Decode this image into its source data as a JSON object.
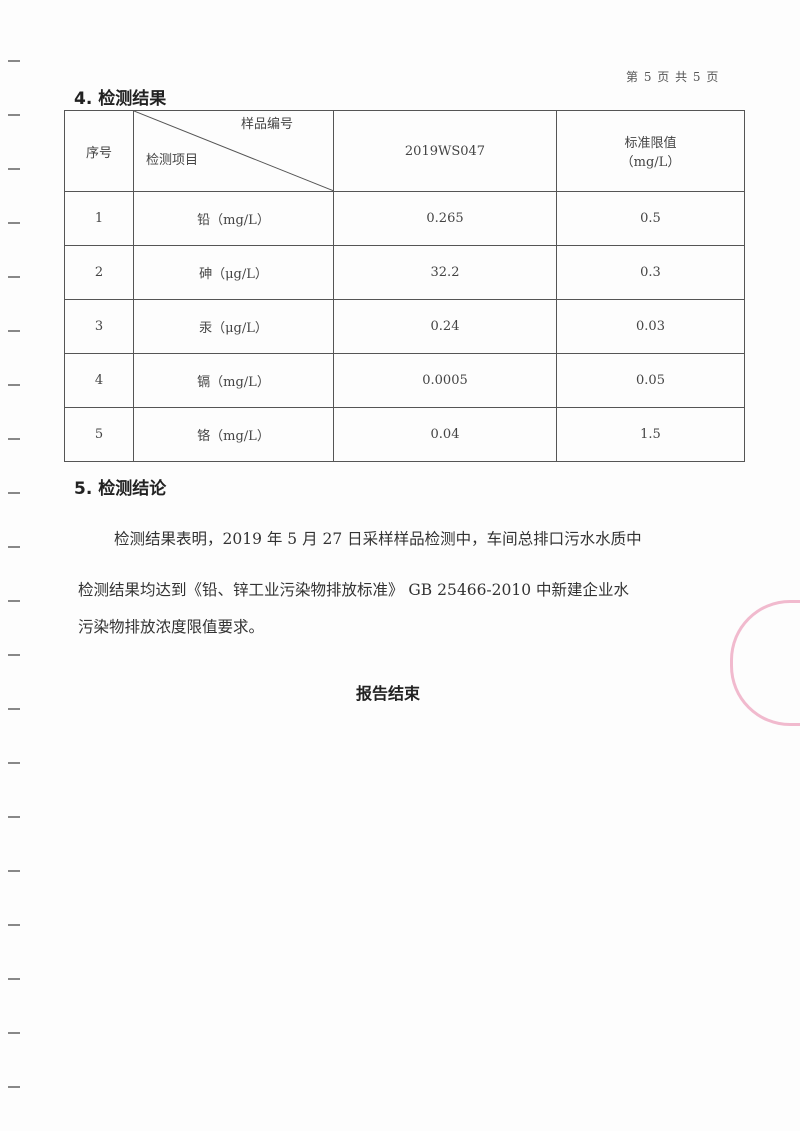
{
  "page_number": "第 5 页 共 5 页",
  "section4": {
    "title": "4. 检测结果"
  },
  "table": {
    "header": {
      "seq": "序号",
      "sample_no": "样品编号",
      "item": "检测项目",
      "sample_id": "2019WS047",
      "limit_line1": "标准限值",
      "limit_line2": "（mg/L）"
    },
    "rows": [
      {
        "seq": "1",
        "item": "铅（mg/L）",
        "value": "0.265",
        "limit": "0.5"
      },
      {
        "seq": "2",
        "item": "砷（μg/L）",
        "value": "32.2",
        "limit": "0.3"
      },
      {
        "seq": "3",
        "item": "汞（μg/L）",
        "value": "0.24",
        "limit": "0.03"
      },
      {
        "seq": "4",
        "item": "镉（mg/L）",
        "value": "0.0005",
        "limit": "0.05"
      },
      {
        "seq": "5",
        "item": "铬（mg/L）",
        "value": "0.04",
        "limit": "1.5"
      }
    ]
  },
  "section5": {
    "title": "5. 检测结论",
    "line1": "检测结果表明，2019 年 5 月 27 日采样样品检测中，车间总排口污水水质中",
    "line2": "检测结果均达到《铅、锌工业污染物排放标准》 GB 25466-2010 中新建企业水",
    "line3": "污染物排放浓度限值要求。"
  },
  "end_text": "报告结束",
  "stamp_color": "#e678a0"
}
